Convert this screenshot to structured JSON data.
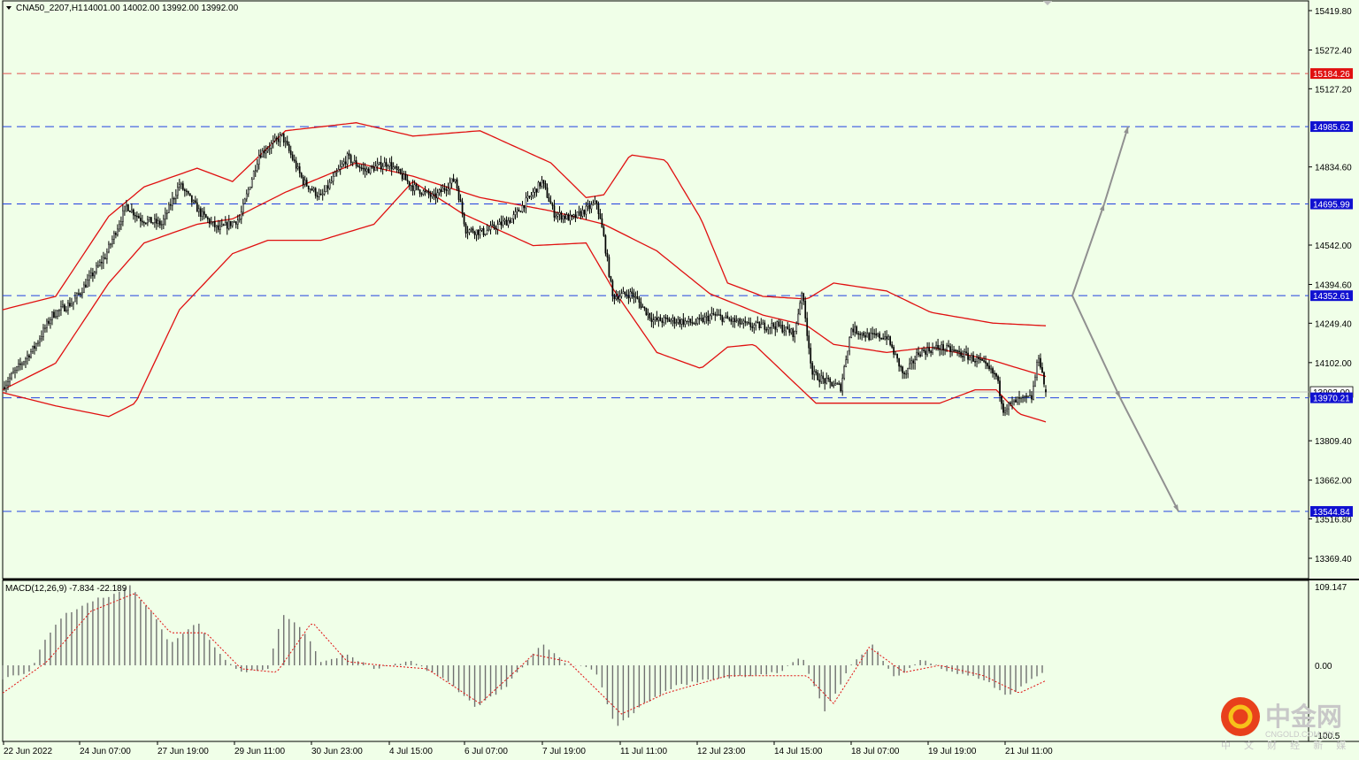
{
  "header": {
    "symbol": "CNA50_2207,H1",
    "ohlc": "14001.00 14002.00 13992.00 13992.00"
  },
  "macd_header": "MACD(12,26,9) -7.834 -22.189",
  "price_axis": {
    "ticks": [
      "15419.80",
      "15272.40",
      "15127.20",
      "14834.60",
      "14542.00",
      "14394.60",
      "14249.40",
      "14102.00",
      "13809.40",
      "13662.00",
      "13516.80",
      "13369.40"
    ],
    "tick_values": [
      15419.8,
      15272.4,
      15127.2,
      14834.6,
      14542.0,
      14394.6,
      14249.4,
      14102.0,
      13809.4,
      13662.0,
      13516.8,
      13369.4
    ]
  },
  "macd_axis": {
    "ticks": [
      "109.147",
      "0.00",
      "-100.5"
    ]
  },
  "time_axis": {
    "labels": [
      "22 Jun 2022",
      "24 Jun 07:00",
      "27 Jun 19:00",
      "29 Jun 11:00",
      "30 Jun 23:00",
      "4 Jul 15:00",
      "6 Jul 07:00",
      "7 Jul 19:00",
      "11 Jul 11:00",
      "12 Jul 23:00",
      "14 Jul 15:00",
      "18 Jul 07:00",
      "19 Jul 19:00",
      "21 Jul 11:00"
    ]
  },
  "levels": [
    {
      "label": "15184.26",
      "value": 15184.26,
      "style": "red"
    },
    {
      "label": "14985.62",
      "value": 14985.62,
      "style": "blue"
    },
    {
      "label": "14695.99",
      "value": 14695.99,
      "style": "blue"
    },
    {
      "label": "14352.61",
      "value": 14352.61,
      "style": "blue"
    },
    {
      "label": "13992.00",
      "value": 13992.0,
      "style": "current"
    },
    {
      "label": "13970.21",
      "value": 13970.21,
      "style": "blue"
    },
    {
      "label": "13544.84",
      "value": 13544.84,
      "style": "blue"
    }
  ],
  "watermark": {
    "brand": "中金网",
    "site": "CNGOLD.COM.CN",
    "tagline": "中 文 财 经 新 媒 体"
  },
  "colors": {
    "background": "#f0ffe8",
    "bollinger": "#e01010",
    "level_blue": "#2040e0",
    "level_red": "#e05050",
    "tag_blue": "#1010d0",
    "tag_red": "#e01010",
    "macd_bars": "#707070",
    "macd_signal": "#e01010",
    "arrow": "#909090"
  },
  "chart_data": {
    "type": "candlestick",
    "symbol": "CNA50_2207",
    "timeframe": "H1",
    "last_bar": {
      "open": 14001.0,
      "high": 14002.0,
      "low": 13992.0,
      "close": 13992.0
    },
    "price_range": [
      13290,
      15460
    ],
    "close_path": [
      {
        "t": 0,
        "v": 14010
      },
      {
        "t": 18,
        "v": 14160
      },
      {
        "t": 28,
        "v": 14280
      },
      {
        "t": 40,
        "v": 14330
      },
      {
        "t": 58,
        "v": 14500
      },
      {
        "t": 70,
        "v": 14690
      },
      {
        "t": 78,
        "v": 14640
      },
      {
        "t": 90,
        "v": 14620
      },
      {
        "t": 100,
        "v": 14770
      },
      {
        "t": 112,
        "v": 14660
      },
      {
        "t": 122,
        "v": 14600
      },
      {
        "t": 134,
        "v": 14640
      },
      {
        "t": 145,
        "v": 14880
      },
      {
        "t": 158,
        "v": 14950
      },
      {
        "t": 170,
        "v": 14780
      },
      {
        "t": 180,
        "v": 14720
      },
      {
        "t": 195,
        "v": 14870
      },
      {
        "t": 205,
        "v": 14820
      },
      {
        "t": 218,
        "v": 14850
      },
      {
        "t": 232,
        "v": 14760
      },
      {
        "t": 244,
        "v": 14720
      },
      {
        "t": 256,
        "v": 14790
      },
      {
        "t": 262,
        "v": 14600
      },
      {
        "t": 272,
        "v": 14590
      },
      {
        "t": 288,
        "v": 14640
      },
      {
        "t": 298,
        "v": 14720
      },
      {
        "t": 305,
        "v": 14780
      },
      {
        "t": 312,
        "v": 14660
      },
      {
        "t": 322,
        "v": 14640
      },
      {
        "t": 336,
        "v": 14700
      },
      {
        "t": 340,
        "v": 14570
      },
      {
        "t": 345,
        "v": 14350
      },
      {
        "t": 356,
        "v": 14360
      },
      {
        "t": 368,
        "v": 14260
      },
      {
        "t": 380,
        "v": 14260
      },
      {
        "t": 392,
        "v": 14250
      },
      {
        "t": 402,
        "v": 14280
      },
      {
        "t": 412,
        "v": 14260
      },
      {
        "t": 422,
        "v": 14240
      },
      {
        "t": 438,
        "v": 14240
      },
      {
        "t": 448,
        "v": 14210
      },
      {
        "t": 452,
        "v": 14370
      },
      {
        "t": 458,
        "v": 14060
      },
      {
        "t": 466,
        "v": 14030
      },
      {
        "t": 474,
        "v": 14010
      },
      {
        "t": 480,
        "v": 14230
      },
      {
        "t": 490,
        "v": 14200
      },
      {
        "t": 500,
        "v": 14200
      },
      {
        "t": 510,
        "v": 14050
      },
      {
        "t": 518,
        "v": 14140
      },
      {
        "t": 530,
        "v": 14160
      },
      {
        "t": 540,
        "v": 14140
      },
      {
        "t": 552,
        "v": 14110
      },
      {
        "t": 562,
        "v": 14050
      },
      {
        "t": 566,
        "v": 13930
      },
      {
        "t": 574,
        "v": 13960
      },
      {
        "t": 582,
        "v": 13970
      },
      {
        "t": 586,
        "v": 14130
      },
      {
        "t": 590,
        "v": 13992
      }
    ],
    "bollinger": {
      "upper": [
        {
          "t": 0,
          "v": 14300
        },
        {
          "t": 30,
          "v": 14350
        },
        {
          "t": 60,
          "v": 14650
        },
        {
          "t": 80,
          "v": 14760
        },
        {
          "t": 110,
          "v": 14830
        },
        {
          "t": 130,
          "v": 14780
        },
        {
          "t": 160,
          "v": 14970
        },
        {
          "t": 200,
          "v": 15000
        },
        {
          "t": 232,
          "v": 14950
        },
        {
          "t": 270,
          "v": 14970
        },
        {
          "t": 310,
          "v": 14850
        },
        {
          "t": 330,
          "v": 14720
        },
        {
          "t": 340,
          "v": 14730
        },
        {
          "t": 355,
          "v": 14880
        },
        {
          "t": 375,
          "v": 14860
        },
        {
          "t": 395,
          "v": 14640
        },
        {
          "t": 410,
          "v": 14400
        },
        {
          "t": 430,
          "v": 14350
        },
        {
          "t": 455,
          "v": 14340
        },
        {
          "t": 470,
          "v": 14400
        },
        {
          "t": 500,
          "v": 14370
        },
        {
          "t": 525,
          "v": 14290
        },
        {
          "t": 560,
          "v": 14250
        },
        {
          "t": 590,
          "v": 14240
        }
      ],
      "middle": [
        {
          "t": 0,
          "v": 14000
        },
        {
          "t": 30,
          "v": 14100
        },
        {
          "t": 60,
          "v": 14400
        },
        {
          "t": 80,
          "v": 14550
        },
        {
          "t": 110,
          "v": 14620
        },
        {
          "t": 130,
          "v": 14640
        },
        {
          "t": 160,
          "v": 14740
        },
        {
          "t": 200,
          "v": 14850
        },
        {
          "t": 232,
          "v": 14800
        },
        {
          "t": 270,
          "v": 14720
        },
        {
          "t": 310,
          "v": 14670
        },
        {
          "t": 340,
          "v": 14620
        },
        {
          "t": 370,
          "v": 14520
        },
        {
          "t": 400,
          "v": 14360
        },
        {
          "t": 430,
          "v": 14280
        },
        {
          "t": 455,
          "v": 14240
        },
        {
          "t": 470,
          "v": 14170
        },
        {
          "t": 500,
          "v": 14140
        },
        {
          "t": 525,
          "v": 14160
        },
        {
          "t": 560,
          "v": 14110
        },
        {
          "t": 590,
          "v": 14050
        }
      ],
      "lower": [
        {
          "t": 0,
          "v": 13990
        },
        {
          "t": 30,
          "v": 13940
        },
        {
          "t": 60,
          "v": 13900
        },
        {
          "t": 75,
          "v": 13950
        },
        {
          "t": 100,
          "v": 14300
        },
        {
          "t": 130,
          "v": 14510
        },
        {
          "t": 150,
          "v": 14560
        },
        {
          "t": 180,
          "v": 14560
        },
        {
          "t": 210,
          "v": 14620
        },
        {
          "t": 232,
          "v": 14780
        },
        {
          "t": 260,
          "v": 14660
        },
        {
          "t": 300,
          "v": 14540
        },
        {
          "t": 330,
          "v": 14550
        },
        {
          "t": 345,
          "v": 14380
        },
        {
          "t": 370,
          "v": 14140
        },
        {
          "t": 395,
          "v": 14080
        },
        {
          "t": 410,
          "v": 14160
        },
        {
          "t": 425,
          "v": 14170
        },
        {
          "t": 460,
          "v": 13950
        },
        {
          "t": 480,
          "v": 13950
        },
        {
          "t": 510,
          "v": 13950
        },
        {
          "t": 530,
          "v": 13950
        },
        {
          "t": 550,
          "v": 14000
        },
        {
          "t": 562,
          "v": 14000
        },
        {
          "t": 575,
          "v": 13910
        },
        {
          "t": 590,
          "v": 13880
        }
      ]
    },
    "projection": [
      {
        "from": 14352.61,
        "to": 14695.99,
        "then": 14985.62,
        "direction": "up"
      },
      {
        "from": 14352.61,
        "to": 13970.21,
        "then": 13544.84,
        "direction": "down"
      }
    ],
    "macd": {
      "params": "12,26,9",
      "main": -7.834,
      "signal": -22.189,
      "range": [
        -100.5,
        109.147
      ],
      "histogram_path": [
        {
          "t": 0,
          "v": -20
        },
        {
          "t": 15,
          "v": -10
        },
        {
          "t": 25,
          "v": 40
        },
        {
          "t": 35,
          "v": 70
        },
        {
          "t": 50,
          "v": 90
        },
        {
          "t": 65,
          "v": 100
        },
        {
          "t": 72,
          "v": 110
        },
        {
          "t": 85,
          "v": 70
        },
        {
          "t": 95,
          "v": 30
        },
        {
          "t": 110,
          "v": 60
        },
        {
          "t": 125,
          "v": 10
        },
        {
          "t": 135,
          "v": -10
        },
        {
          "t": 150,
          "v": -5
        },
        {
          "t": 158,
          "v": 70
        },
        {
          "t": 170,
          "v": 50
        },
        {
          "t": 180,
          "v": 5
        },
        {
          "t": 195,
          "v": 15
        },
        {
          "t": 210,
          "v": -5
        },
        {
          "t": 232,
          "v": 5
        },
        {
          "t": 250,
          "v": -20
        },
        {
          "t": 268,
          "v": -60
        },
        {
          "t": 285,
          "v": -30
        },
        {
          "t": 305,
          "v": 30
        },
        {
          "t": 320,
          "v": 0
        },
        {
          "t": 335,
          "v": -5
        },
        {
          "t": 347,
          "v": -90
        },
        {
          "t": 360,
          "v": -60
        },
        {
          "t": 380,
          "v": -30
        },
        {
          "t": 400,
          "v": -20
        },
        {
          "t": 420,
          "v": -15
        },
        {
          "t": 440,
          "v": -10
        },
        {
          "t": 452,
          "v": 12
        },
        {
          "t": 465,
          "v": -65
        },
        {
          "t": 480,
          "v": 0
        },
        {
          "t": 492,
          "v": 30
        },
        {
          "t": 505,
          "v": -20
        },
        {
          "t": 520,
          "v": 10
        },
        {
          "t": 535,
          "v": -10
        },
        {
          "t": 555,
          "v": -20
        },
        {
          "t": 568,
          "v": -45
        },
        {
          "t": 590,
          "v": -8
        }
      ],
      "signal_path": [
        {
          "t": 0,
          "v": -40
        },
        {
          "t": 25,
          "v": 5
        },
        {
          "t": 50,
          "v": 75
        },
        {
          "t": 75,
          "v": 100
        },
        {
          "t": 95,
          "v": 45
        },
        {
          "t": 115,
          "v": 45
        },
        {
          "t": 135,
          "v": -5
        },
        {
          "t": 155,
          "v": -10
        },
        {
          "t": 175,
          "v": 60
        },
        {
          "t": 195,
          "v": 5
        },
        {
          "t": 215,
          "v": 0
        },
        {
          "t": 240,
          "v": -5
        },
        {
          "t": 270,
          "v": -55
        },
        {
          "t": 300,
          "v": 15
        },
        {
          "t": 320,
          "v": 5
        },
        {
          "t": 350,
          "v": -70
        },
        {
          "t": 375,
          "v": -40
        },
        {
          "t": 410,
          "v": -15
        },
        {
          "t": 455,
          "v": -15
        },
        {
          "t": 470,
          "v": -55
        },
        {
          "t": 490,
          "v": 25
        },
        {
          "t": 510,
          "v": -10
        },
        {
          "t": 530,
          "v": 0
        },
        {
          "t": 555,
          "v": -15
        },
        {
          "t": 575,
          "v": -40
        },
        {
          "t": 590,
          "v": -22
        }
      ]
    }
  }
}
